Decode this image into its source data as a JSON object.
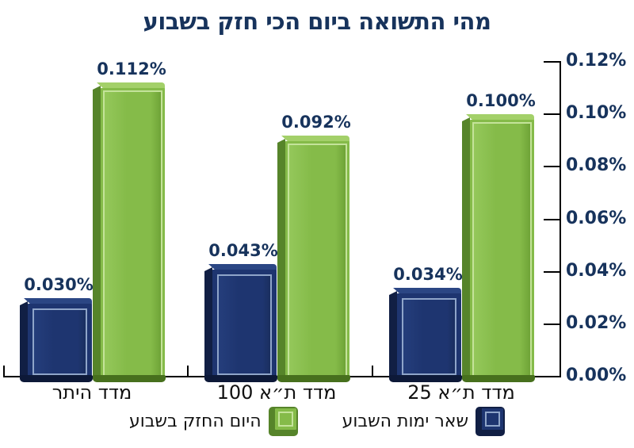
{
  "title": "מהי התשואה ביום הכי חזק בשבוע",
  "chart_data": {
    "type": "bar",
    "title": "מהי התשואה ביום הכי חזק בשבוע",
    "direction": "rtl",
    "categories": [
      "מדד היתר",
      "מדד ת״א 100",
      "מדד ת״א 25"
    ],
    "series": [
      {
        "name": "שאר ימות השבוע",
        "role": "other-days",
        "color": "#1e3570",
        "values_pct": [
          0.03,
          0.043,
          0.034
        ],
        "data_labels": [
          "0.030%",
          "0.043%",
          "0.034%"
        ]
      },
      {
        "name": "היום החזק בשבוע",
        "role": "strong-day",
        "color": "#85bb49",
        "values_pct": [
          0.112,
          0.092,
          0.1
        ],
        "data_labels": [
          "0.112%",
          "0.092%",
          "0.100%"
        ]
      }
    ],
    "ylim": [
      0,
      0.12
    ],
    "yticks": [
      0.0,
      0.02,
      0.04,
      0.06,
      0.08,
      0.1,
      0.12
    ],
    "ytick_labels": [
      "0.00%",
      "0.02%",
      "0.04%",
      "0.06%",
      "0.08%",
      "0.10%",
      "0.12%"
    ],
    "y_axis_side": "right",
    "grid": false,
    "legend_position": "bottom"
  },
  "legend": {
    "items": [
      {
        "label": "היום החזק בשבוע",
        "role": "strong-day",
        "color": "#85bb49"
      },
      {
        "label": "שאר ימות השבוע",
        "role": "other-days",
        "color": "#1e3570"
      }
    ]
  },
  "colors": {
    "background": "#ffffff",
    "title_text": "#17335c",
    "value_label_text": "#17335c",
    "ytick_label_text": "#17335c",
    "category_text": "#111111",
    "legend_text": "#111111",
    "axis": "#000000",
    "navy_face": "#1e3570",
    "navy_face_hi": "#27417f",
    "navy_face_lo": "#172a52",
    "navy_side": "#111f44",
    "navy_top": "#2b4684",
    "navy_base": "#0d1938",
    "navy_ring": "#8fa5c9",
    "green_face": "#85bb49",
    "green_face_hi": "#97ca5e",
    "green_face_lo": "#669a30",
    "green_side": "#56842a",
    "green_top": "#a3d069",
    "green_base": "#47701d",
    "green_ring": "#c4e39a"
  }
}
